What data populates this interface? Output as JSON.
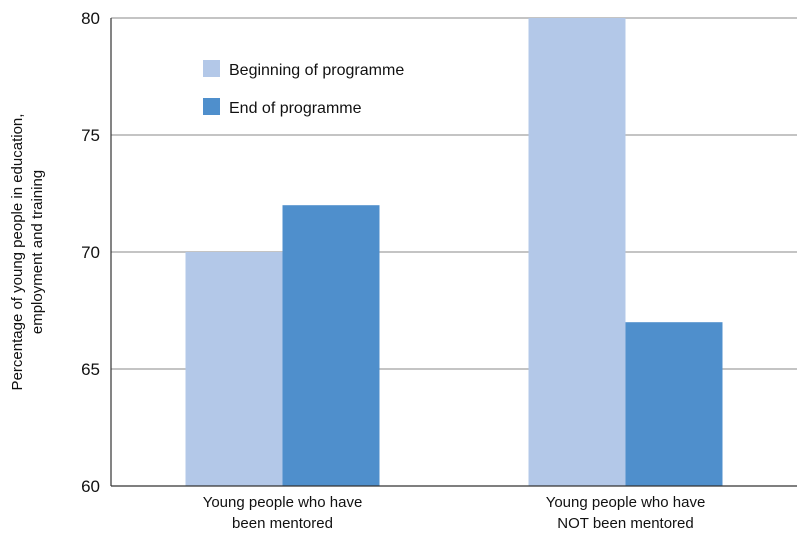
{
  "chart_data": {
    "type": "bar",
    "categories": [
      [
        "Young people who have",
        "been mentored"
      ],
      [
        "Young people who have",
        "NOT been mentored"
      ]
    ],
    "series": [
      {
        "name": "Beginning of programme",
        "color": "#b3c8e8",
        "values": [
          70,
          80
        ]
      },
      {
        "name": "End of programme",
        "color": "#4f8fcc",
        "values": [
          72,
          67
        ]
      }
    ],
    "ylabel": [
      "Percentage of young people in education,",
      "employment and training"
    ],
    "ylim": [
      60,
      80
    ],
    "yticks": [
      60,
      65,
      70,
      75,
      80
    ],
    "grid": true,
    "legend": "top-left"
  }
}
